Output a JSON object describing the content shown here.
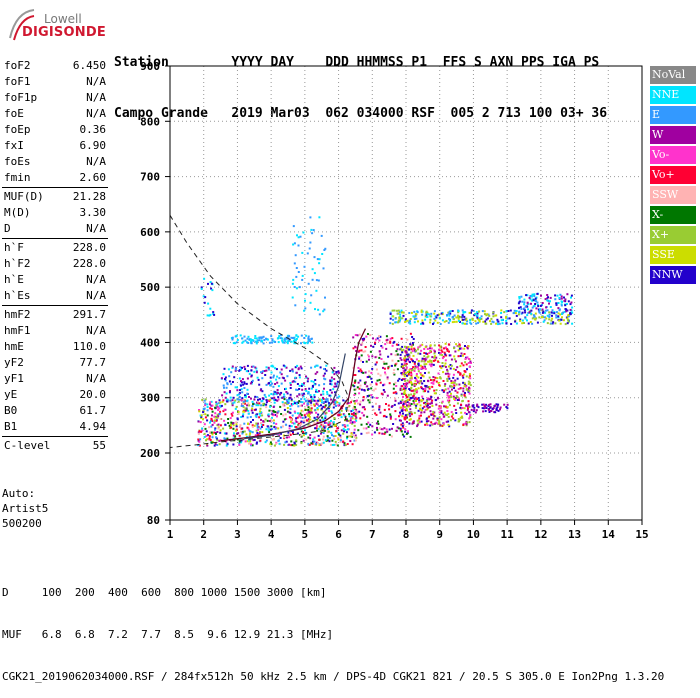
{
  "logo": {
    "line1": "Lowell",
    "line2": "DIGISONDE"
  },
  "header": {
    "labels_line": "Station        YYYY DAY    DDD HHMMSS P1  FFS S AXN PPS IGA PS",
    "values_line": "Campo Grande   2019 Mar03  062 034000 RSF  005 2 713 100 03+ 36"
  },
  "params_groups": [
    [
      {
        "name": "foF2",
        "value": "6.450"
      },
      {
        "name": "foF1",
        "value": "N/A"
      },
      {
        "name": "foF1p",
        "value": "N/A"
      },
      {
        "name": "foE",
        "value": "N/A"
      },
      {
        "name": "foEp",
        "value": "0.36"
      },
      {
        "name": "fxI",
        "value": "6.90"
      },
      {
        "name": "foEs",
        "value": "N/A"
      },
      {
        "name": "fmin",
        "value": "2.60"
      }
    ],
    [
      {
        "name": "MUF(D)",
        "value": "21.28"
      },
      {
        "name": "M(D)",
        "value": "3.30"
      },
      {
        "name": "D",
        "value": "N/A"
      }
    ],
    [
      {
        "name": "h`F",
        "value": "228.0"
      },
      {
        "name": "h`F2",
        "value": "228.0"
      },
      {
        "name": "h`E",
        "value": "N/A"
      },
      {
        "name": "h`Es",
        "value": "N/A"
      }
    ],
    [
      {
        "name": "hmF2",
        "value": "291.7"
      },
      {
        "name": "hmF1",
        "value": "N/A"
      },
      {
        "name": "hmE",
        "value": "110.0"
      },
      {
        "name": "yF2",
        "value": "77.7"
      },
      {
        "name": "yF1",
        "value": "N/A"
      },
      {
        "name": "yE",
        "value": "20.0"
      },
      {
        "name": "B0",
        "value": "61.7"
      },
      {
        "name": "B1",
        "value": "4.94"
      }
    ],
    [
      {
        "name": "C-level",
        "value": "55"
      }
    ]
  ],
  "auto": {
    "line1": "Auto:",
    "line2": "Artist5",
    "line3": "500200"
  },
  "legend": [
    {
      "label": "NoVal",
      "color": "#888888"
    },
    {
      "label": "NNE",
      "color": "#00e5ff"
    },
    {
      "label": "E",
      "color": "#3399ff"
    },
    {
      "label": "W",
      "color": "#a000a0"
    },
    {
      "label": "Vo-",
      "color": "#ff33cc"
    },
    {
      "label": "Vo+",
      "color": "#ff0033"
    },
    {
      "label": "SSW",
      "color": "#ffb3b3"
    },
    {
      "label": "X-",
      "color": "#007700"
    },
    {
      "label": "X+",
      "color": "#99cc33"
    },
    {
      "label": "SSE",
      "color": "#ccdd00"
    },
    {
      "label": "NNW",
      "color": "#2200cc"
    }
  ],
  "chart_data": {
    "type": "scatter",
    "title": "",
    "xlabel": "",
    "ylabel": "",
    "xlim": [
      1,
      15
    ],
    "ylim": [
      80,
      900
    ],
    "x_ticks": [
      1,
      2,
      3,
      4,
      5,
      6,
      7,
      8,
      9,
      10,
      11,
      12,
      13,
      14,
      15
    ],
    "y_ticks": [
      80,
      200,
      300,
      400,
      500,
      600,
      700,
      800,
      900
    ],
    "grid": "dotted"
  },
  "footer": {
    "d_line": "D     100  200  400  600  800 1000 1500 3000 [km]",
    "muf_line": "MUF   6.8  6.8  7.2  7.7  8.5  9.6 12.9 21.3 [MHz]",
    "info_line": "CGK21_2019062034000.RSF / 284fx512h 50 kHz 2.5 km / DPS-4D CGK21 821 / 20.5 S 305.0 E Ion2Png 1.3.20"
  }
}
